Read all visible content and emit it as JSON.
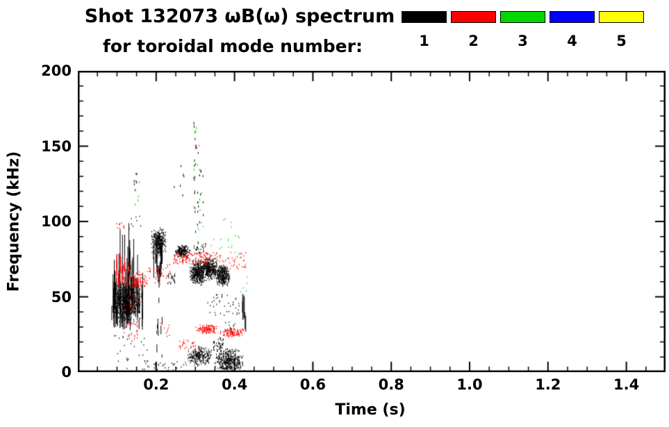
{
  "header": {
    "title_line1": "Shot 132073 ωB(ω) spectrum",
    "title_line2": "for toroidal mode number:"
  },
  "legend": {
    "items": [
      {
        "label": "1",
        "color": "#000000"
      },
      {
        "label": "2",
        "color": "#ff0000"
      },
      {
        "label": "3",
        "color": "#00d800"
      },
      {
        "label": "4",
        "color": "#0000ff"
      },
      {
        "label": "5",
        "color": "#ffff00"
      }
    ]
  },
  "chart_data": {
    "type": "scatter",
    "title": "Shot 132073 ωB(ω) spectrum for toroidal mode number",
    "xlabel": "Time (s)",
    "ylabel": "Frequency (kHz)",
    "xlim": [
      0.0,
      1.5
    ],
    "ylim": [
      0,
      200
    ],
    "xticks": [
      0.2,
      0.4,
      0.6,
      0.8,
      1.0,
      1.2,
      1.4
    ],
    "xtick_labels": [
      "0.2",
      "0.4",
      "0.6",
      "0.8",
      "1.0",
      "1.2",
      "1.4"
    ],
    "yticks": [
      0,
      50,
      100,
      150,
      200
    ],
    "ytick_labels": [
      "0",
      "50",
      "100",
      "150",
      "200"
    ],
    "x_minor_step": 0.05,
    "y_minor_step": 10,
    "grid": false,
    "legend_position": "top-right",
    "series": [
      {
        "name": "mode 1",
        "color": "#000000",
        "clusters": [
          {
            "s": "blob",
            "t": [
              0.085,
              0.163
            ],
            "f": [
              33,
              61
            ],
            "n": 650
          },
          {
            "s": "hairs",
            "t": [
              0.085,
              0.165
            ],
            "f": [
              27,
              54
            ],
            "l": [
              4,
              26
            ],
            "n": 90
          },
          {
            "s": "hairs",
            "t": [
              0.1,
              0.155
            ],
            "f": [
              58,
              72
            ],
            "l": [
              10,
              30
            ],
            "n": 14
          },
          {
            "s": "band",
            "t": [
              0.13,
              0.162
            ],
            "f": [
              95,
              104
            ],
            "n": 8
          },
          {
            "s": "band",
            "t": [
              0.142,
              0.15
            ],
            "f": [
              108,
              136
            ],
            "n": 7,
            "dh": 3
          },
          {
            "s": "band",
            "t": [
              0.09,
              0.18
            ],
            "f": [
              2,
              26
            ],
            "n": 30
          },
          {
            "s": "blob",
            "t": [
              0.185,
              0.226
            ],
            "f": [
              78,
              97
            ],
            "n": 300
          },
          {
            "s": "hairs",
            "t": [
              0.19,
              0.215
            ],
            "f": [
              56,
              78
            ],
            "l": [
              3,
              16
            ],
            "n": 25
          },
          {
            "s": "hairs",
            "t": [
              0.195,
              0.216
            ],
            "f": [
              2,
              48
            ],
            "l": [
              2,
              9
            ],
            "n": 10
          },
          {
            "s": "band",
            "t": [
              0.228,
              0.247
            ],
            "f": [
              59,
              66
            ],
            "n": 26
          },
          {
            "s": "blob",
            "t": [
              0.246,
              0.286
            ],
            "f": [
              76,
              85
            ],
            "n": 190
          },
          {
            "s": "blob",
            "t": [
              0.285,
              0.325
            ],
            "f": [
              58,
              75
            ],
            "n": 330
          },
          {
            "s": "blob",
            "t": [
              0.31,
              0.362
            ],
            "f": [
              61,
              77
            ],
            "n": 380
          },
          {
            "s": "blob",
            "t": [
              0.352,
              0.388
            ],
            "f": [
              57,
              72
            ],
            "n": 300
          },
          {
            "s": "band",
            "t": [
              0.295,
              0.308
            ],
            "f": [
              82,
              172
            ],
            "n": 26,
            "dh": 3
          },
          {
            "s": "band",
            "t": [
              0.31,
              0.32
            ],
            "f": [
              95,
              140
            ],
            "n": 8,
            "dh": 3
          },
          {
            "s": "band",
            "t": [
              0.33,
              0.412
            ],
            "f": [
              38,
              52
            ],
            "n": 40
          },
          {
            "s": "blob",
            "t": [
              0.278,
              0.345
            ],
            "f": [
              4,
              18
            ],
            "n": 240
          },
          {
            "s": "blob",
            "t": [
              0.348,
              0.425
            ],
            "f": [
              0,
              16
            ],
            "n": 380
          },
          {
            "s": "band",
            "t": [
              0.345,
              0.372
            ],
            "f": [
              14,
              23
            ],
            "n": 50
          },
          {
            "s": "hairs",
            "t": [
              0.419,
              0.428
            ],
            "f": [
              26,
              42
            ],
            "l": [
              6,
              16
            ],
            "n": 8
          },
          {
            "s": "band",
            "t": [
              0.16,
              0.28
            ],
            "f": [
              0,
              8
            ],
            "n": 45
          },
          {
            "s": "band",
            "t": [
              0.375,
              0.405
            ],
            "f": [
              27,
              34
            ],
            "n": 12
          },
          {
            "s": "band",
            "t": [
              0.245,
              0.272
            ],
            "f": [
              118,
              140
            ],
            "n": 6,
            "dh": 3
          },
          {
            "s": "band",
            "t": [
              0.29,
              0.33
            ],
            "f": [
              77,
              86
            ],
            "n": 25
          }
        ]
      },
      {
        "name": "mode 2",
        "color": "#ff0000",
        "clusters": [
          {
            "s": "band",
            "t": [
              0.094,
              0.118
            ],
            "f": [
              94,
              102
            ],
            "n": 10
          },
          {
            "s": "hairs",
            "t": [
              0.098,
              0.128
            ],
            "f": [
              55,
              72
            ],
            "l": [
              3,
              12
            ],
            "n": 22
          },
          {
            "s": "blob",
            "t": [
              0.125,
              0.178
            ],
            "f": [
              54,
              68
            ],
            "n": 110
          },
          {
            "s": "band",
            "t": [
              0.175,
              0.235
            ],
            "f": [
              59,
              72
            ],
            "n": 40
          },
          {
            "s": "band",
            "t": [
              0.243,
              0.335
            ],
            "f": [
              72,
              80
            ],
            "n": 130
          },
          {
            "s": "band",
            "t": [
              0.335,
              0.428
            ],
            "f": [
              69,
              80
            ],
            "n": 55
          },
          {
            "s": "blob",
            "t": [
              0.298,
              0.362
            ],
            "f": [
              26,
              32
            ],
            "n": 120
          },
          {
            "s": "blob",
            "t": [
              0.358,
              0.428
            ],
            "f": [
              23,
              30
            ],
            "n": 110
          },
          {
            "s": "band",
            "t": [
              0.255,
              0.3
            ],
            "f": [
              15,
              22
            ],
            "n": 28
          },
          {
            "s": "band",
            "t": [
              0.115,
              0.152
            ],
            "f": [
              22,
              36
            ],
            "n": 24
          },
          {
            "s": "band",
            "t": [
              0.298,
              0.31
            ],
            "f": [
              146,
              154
            ],
            "n": 3
          },
          {
            "s": "band",
            "t": [
              0.21,
              0.235
            ],
            "f": [
              24,
              33
            ],
            "n": 10
          },
          {
            "s": "band",
            "t": [
              0.12,
              0.16
            ],
            "f": [
              40,
              52
            ],
            "n": 20
          }
        ]
      },
      {
        "name": "mode 3",
        "color": "#00d800",
        "clusters": [
          {
            "s": "band",
            "t": [
              0.293,
              0.316
            ],
            "f": [
              108,
              142
            ],
            "n": 9,
            "dh": 3
          },
          {
            "s": "band",
            "t": [
              0.295,
              0.308
            ],
            "f": [
              148,
              166
            ],
            "n": 5,
            "dh": 3
          },
          {
            "s": "band",
            "t": [
              0.335,
              0.412
            ],
            "f": [
              76,
              92
            ],
            "n": 16
          },
          {
            "s": "band",
            "t": [
              0.138,
              0.158
            ],
            "f": [
              110,
              128
            ],
            "n": 5,
            "dh": 3
          },
          {
            "s": "band",
            "t": [
              0.3,
              0.325
            ],
            "f": [
              86,
              102
            ],
            "n": 6
          },
          {
            "s": "band",
            "t": [
              0.415,
              0.432
            ],
            "f": [
              52,
              64
            ],
            "n": 5
          },
          {
            "s": "band",
            "t": [
              0.36,
              0.4
            ],
            "f": [
              96,
              110
            ],
            "n": 4
          }
        ]
      },
      {
        "name": "mode 4",
        "color": "#0000ff",
        "clusters": []
      },
      {
        "name": "mode 5",
        "color": "#ffff00",
        "clusters": []
      }
    ]
  }
}
